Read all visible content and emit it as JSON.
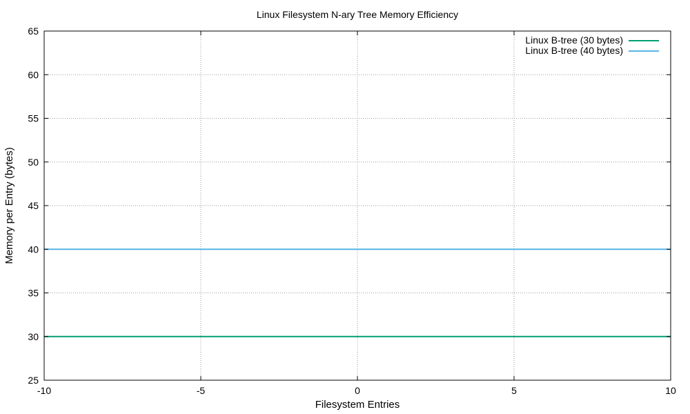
{
  "chart_data": {
    "type": "line",
    "title": "Linux Filesystem N-ary Tree Memory Efficiency",
    "xlabel": "Filesystem Entries",
    "ylabel": "Memory per Entry (bytes)",
    "xlim": [
      -10,
      10
    ],
    "ylim": [
      25,
      65
    ],
    "xticks": [
      "-10",
      "-5",
      "0",
      "5",
      "10"
    ],
    "yticks": [
      "25",
      "30",
      "35",
      "40",
      "45",
      "50",
      "55",
      "60",
      "65"
    ],
    "grid": true,
    "legend_position": "top-right",
    "series": [
      {
        "name": "Linux B-tree (30 bytes)",
        "color": "#009e73",
        "x": [
          -10,
          10
        ],
        "y": [
          30,
          30
        ]
      },
      {
        "name": "Linux B-tree (40 bytes)",
        "color": "#56b4e9",
        "x": [
          -10,
          10
        ],
        "y": [
          40,
          40
        ]
      }
    ]
  }
}
